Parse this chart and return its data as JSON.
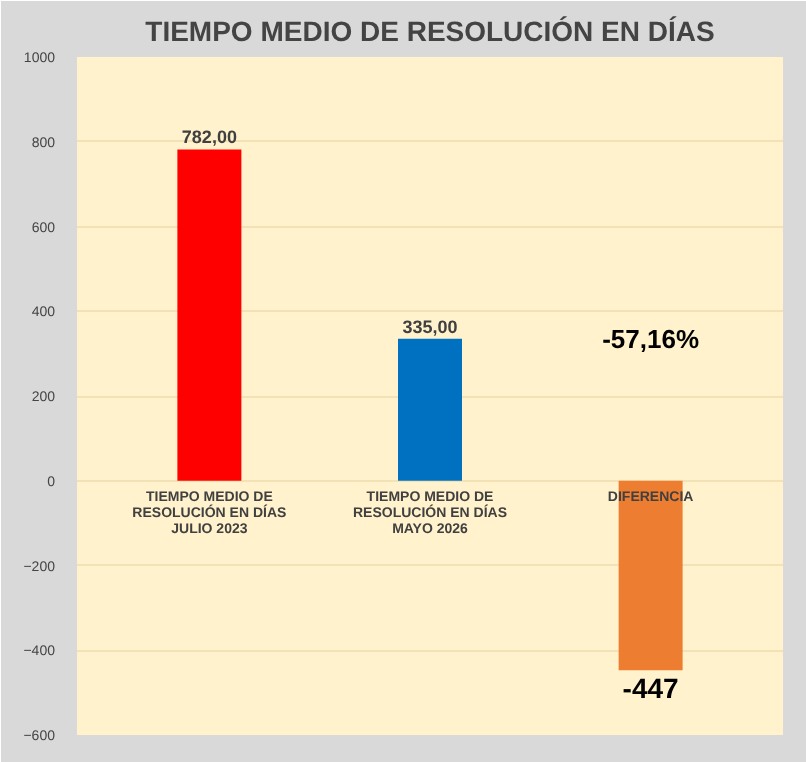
{
  "chart_data": {
    "type": "bar",
    "title": "TIEMPO MEDIO DE RESOLUCIÓN EN DÍAS",
    "categories": [
      "TIEMPO MEDIO DE RESOLUCIÓN EN DÍAS JULIO 2023",
      "TIEMPO MEDIO DE RESOLUCIÓN EN DÍAS MAYO 2026",
      "DIFERENCIA"
    ],
    "values": [
      782,
      335,
      -447
    ],
    "colors": [
      "#ff0000",
      "#0070c0",
      "#ed7d31"
    ],
    "value_labels": [
      "782,00",
      "335,00",
      "-447"
    ],
    "annotations": [
      "-57,16%"
    ],
    "ylim": [
      -600,
      1000
    ],
    "yticks": [
      -600,
      -400,
      -200,
      0,
      200,
      400,
      600,
      800,
      1000
    ],
    "grid": "y"
  }
}
